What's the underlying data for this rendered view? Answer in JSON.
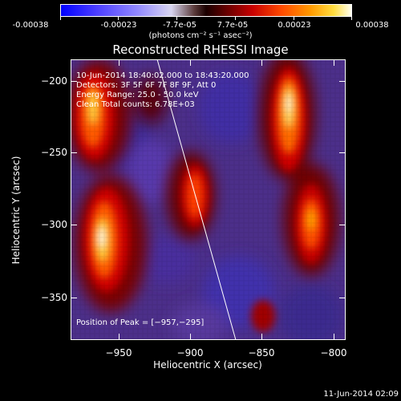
{
  "colorbar": {
    "ticks": [
      "-0.00038",
      "-0.00023",
      "-7.7e-05",
      "7.7e-05",
      "0.00023",
      "0.00038"
    ],
    "units": "(photons cm⁻² s⁻¹ asec⁻²)",
    "stops": [
      "#0000ff",
      "#6b5bff",
      "#d8d5f0",
      "#1a0000",
      "#b00000",
      "#ff5a00",
      "#ffb000",
      "#fffff0"
    ]
  },
  "plot": {
    "title": "Reconstructed RHESSI Image",
    "xlabel": "Heliocentric X (arcsec)",
    "ylabel": "Heliocentric Y (arcsec)",
    "xticks": [
      "−950",
      "−900",
      "−850",
      "−800"
    ],
    "yticks": [
      "−200",
      "−250",
      "−300",
      "−350"
    ],
    "xrange": [
      -990,
      -788
    ],
    "yrange": [
      -190,
      -378
    ]
  },
  "info": {
    "line1": "10-Jun-2014 18:40:02.000 to 18:43:20.000",
    "line2": "Detectors: 3F 5F 6F 7F 8F 9F, Att 0",
    "line3": "Energy Range: 25.0 - 50.0 keV",
    "line4": "Clean    Total counts: 6.78E+03",
    "peak": "Position of Peak = [−957,−295]"
  },
  "footer": {
    "date": "11-Jun-2014 02:09"
  }
}
